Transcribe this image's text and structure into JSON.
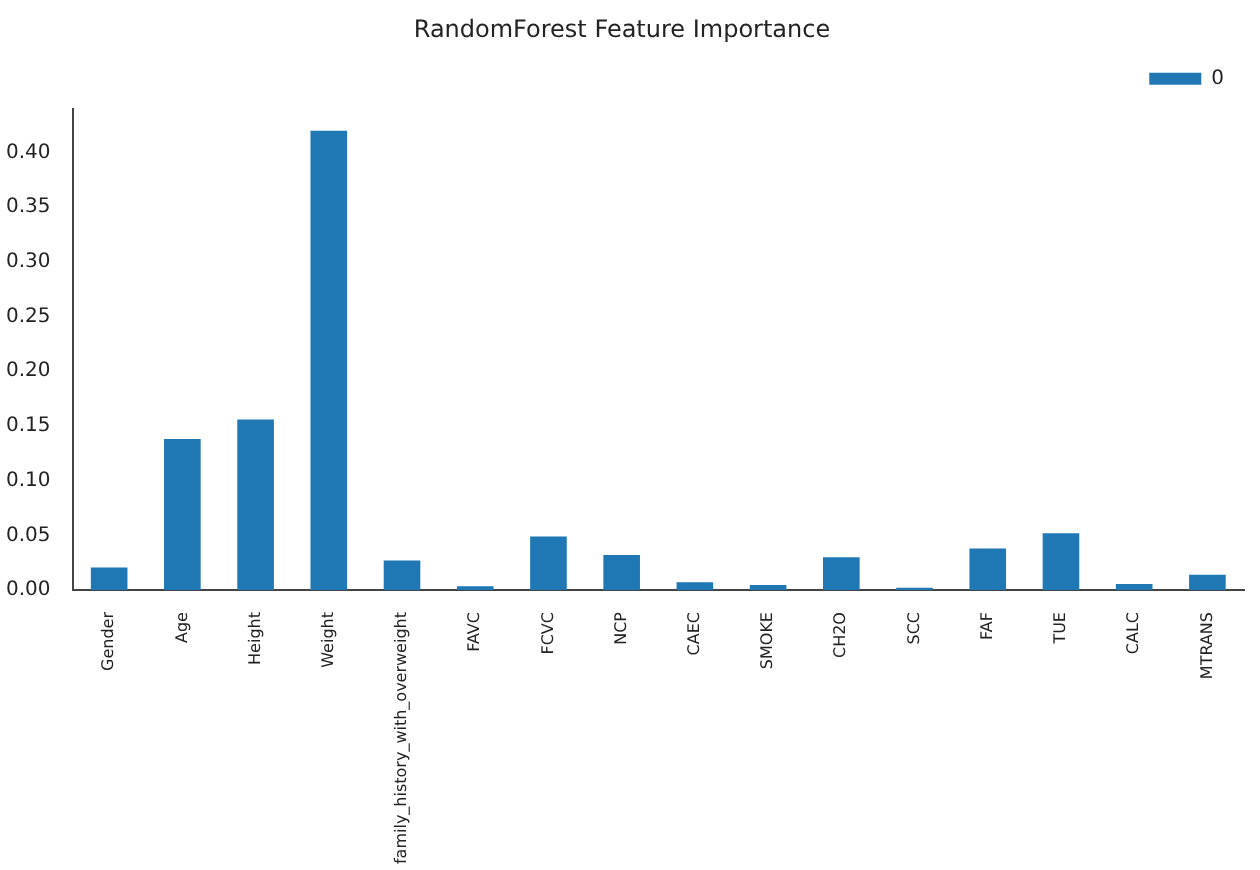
{
  "chart_data": {
    "type": "bar",
    "title": "RandomForest Feature Importance",
    "categories": [
      "Gender",
      "Age",
      "Height",
      "Weight",
      "family_history_with_overweight",
      "FAVC",
      "FCVC",
      "NCP",
      "CAEC",
      "SMOKE",
      "CH2O",
      "SCC",
      "FAF",
      "TUE",
      "CALC",
      "MTRANS"
    ],
    "series": [
      {
        "name": "0",
        "color": "#1f77b4",
        "values": [
          0.0205,
          0.138,
          0.156,
          0.42,
          0.027,
          0.0035,
          0.049,
          0.032,
          0.007,
          0.0045,
          0.03,
          0.002,
          0.038,
          0.052,
          0.0055,
          0.014
        ]
      }
    ],
    "ylim": [
      0,
      0.44
    ],
    "yticks": [
      {
        "value": 0,
        "label": "0.00"
      },
      {
        "value": 0.05,
        "label": "0.05"
      },
      {
        "value": 0.1,
        "label": "0.10"
      },
      {
        "value": 0.15,
        "label": "0.15"
      },
      {
        "value": 0.2,
        "label": "0.20"
      },
      {
        "value": 0.25,
        "label": "0.25"
      },
      {
        "value": 0.3,
        "label": "0.30"
      },
      {
        "value": 0.35,
        "label": "0.35"
      },
      {
        "value": 0.4,
        "label": "0.40"
      }
    ],
    "grid": false,
    "legend": "top right"
  }
}
